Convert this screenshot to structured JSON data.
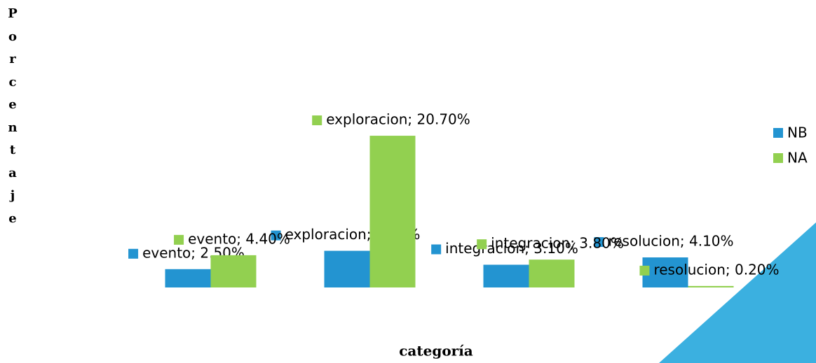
{
  "chart_data": {
    "type": "bar",
    "y_label": "Porcentaje",
    "x_label": "categoría",
    "categories": [
      "evento",
      "exploracion",
      "integracion",
      "resolucion"
    ],
    "series": [
      {
        "name": "NB",
        "color": "#2394d1",
        "values": [
          2.5,
          5.0,
          3.1,
          4.1
        ],
        "value_labels": [
          "evento; 2.50%",
          "exploracion; 5.00%",
          "integracion; 3.10%",
          "resolucion; 4.10%"
        ]
      },
      {
        "name": "NA",
        "color": "#92d050",
        "values": [
          4.4,
          20.7,
          3.8,
          0.2
        ],
        "value_labels": [
          "evento; 4.40%",
          "exploracion; 20.70%",
          "integracion; 3.80%",
          "resolucion; 0.20%"
        ]
      }
    ],
    "ylim": [
      0,
      25
    ]
  }
}
